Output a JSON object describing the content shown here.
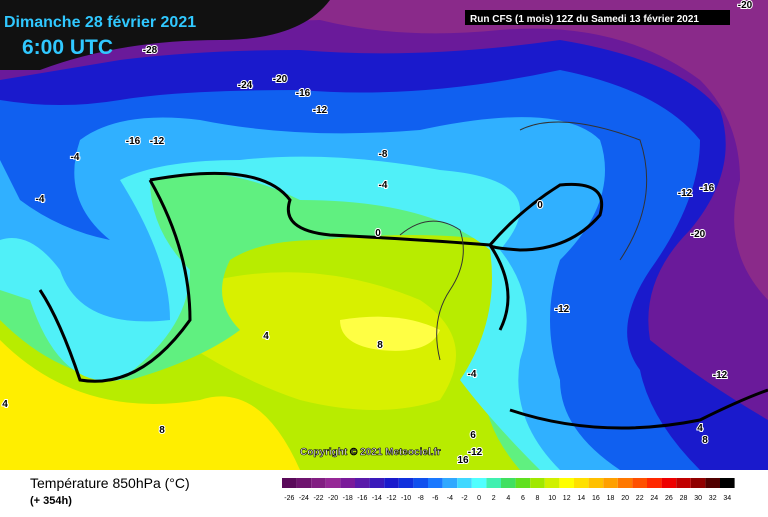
{
  "header": {
    "title": "Dimanche 28 février 2021",
    "time": "6:00 UTC",
    "run": "Run CFS (1 mois) 12Z du Samedi 13 février 2021"
  },
  "map": {
    "copyright": "Copyright © 2021 Meteociel.fr",
    "contour_labels": [
      "-20",
      "-28",
      "-24",
      "-20",
      "-16",
      "-12",
      "-16",
      "-12",
      "-4",
      "-8",
      "-4",
      "-4",
      "0",
      "0",
      "-12",
      "-16",
      "-20",
      "-12",
      "4",
      "8",
      "-4",
      "-12",
      "4",
      "8",
      "4",
      "8",
      "6",
      "-12",
      "16"
    ]
  },
  "footer": {
    "title": "Température 850hPa (°C)",
    "lead": "(+ 354h)"
  },
  "legend": {
    "labels": [
      "-26",
      "-24",
      "-22",
      "-20",
      "-18",
      "-16",
      "-14",
      "-12",
      "-10",
      "-8",
      "-6",
      "-4",
      "-2",
      "0",
      "2",
      "4",
      "6",
      "8",
      "10",
      "12",
      "14",
      "16",
      "18",
      "20",
      "22",
      "24",
      "26",
      "28",
      "30",
      "32",
      "34"
    ],
    "colors": [
      "#5a0a5a",
      "#6e146e",
      "#821e82",
      "#962896",
      "#7a1a9a",
      "#5a1aaa",
      "#3a1abb",
      "#1a1acc",
      "#1030dd",
      "#1050ee",
      "#1a78ff",
      "#30a8ff",
      "#40d8ff",
      "#50ffff",
      "#40f0b0",
      "#40e060",
      "#60e020",
      "#a0e800",
      "#d0f000",
      "#ffff00",
      "#ffe000",
      "#ffc000",
      "#ffa000",
      "#ff7800",
      "#ff5000",
      "#ff2800",
      "#ee0000",
      "#c00000",
      "#900000",
      "#500000",
      "#000000"
    ]
  }
}
